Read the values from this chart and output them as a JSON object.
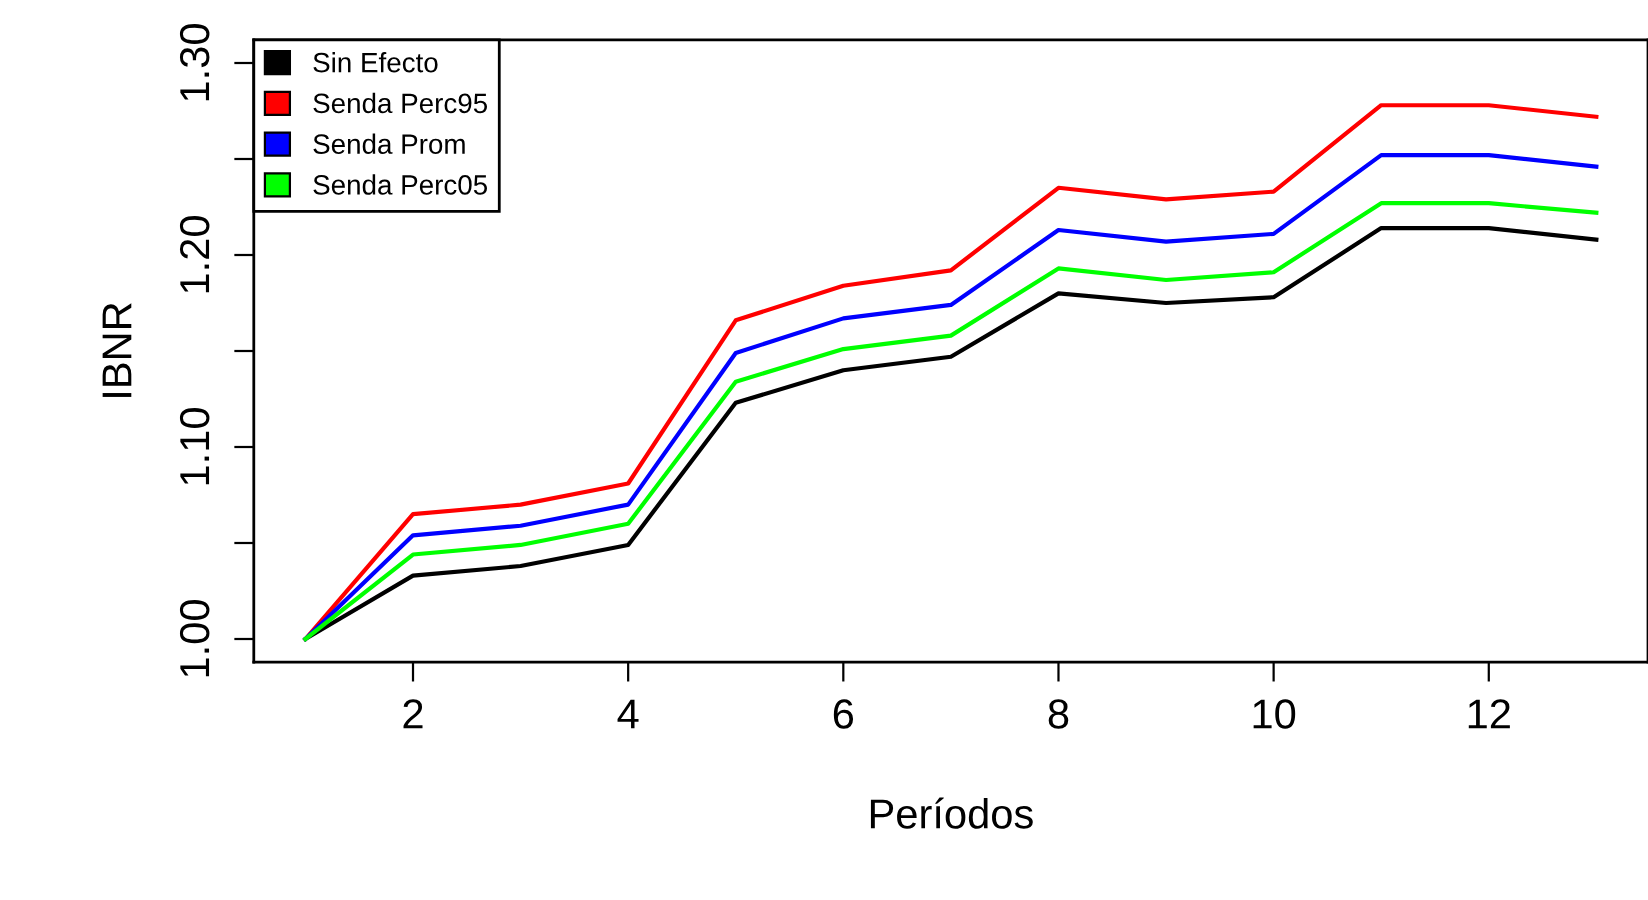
{
  "chart_data": {
    "type": "line",
    "xlabel": "Períodos",
    "ylabel": "IBNR",
    "x": [
      1,
      2,
      3,
      4,
      5,
      6,
      7,
      8,
      9,
      10,
      11,
      12,
      13
    ],
    "series": [
      {
        "name": "Sin Efecto",
        "color": "#000000",
        "values": [
          1.0,
          1.033,
          1.038,
          1.049,
          1.123,
          1.14,
          1.147,
          1.18,
          1.175,
          1.178,
          1.214,
          1.214,
          1.208
        ]
      },
      {
        "name": "Senda Perc95",
        "color": "#ff0000",
        "values": [
          1.0,
          1.065,
          1.07,
          1.081,
          1.166,
          1.184,
          1.192,
          1.235,
          1.229,
          1.233,
          1.278,
          1.278,
          1.272
        ]
      },
      {
        "name": "Senda Prom",
        "color": "#0000ff",
        "values": [
          1.0,
          1.054,
          1.059,
          1.07,
          1.149,
          1.167,
          1.174,
          1.213,
          1.207,
          1.211,
          1.252,
          1.252,
          1.246
        ]
      },
      {
        "name": "Senda Perc05",
        "color": "#00ff00",
        "values": [
          1.0,
          1.044,
          1.049,
          1.06,
          1.134,
          1.151,
          1.158,
          1.193,
          1.187,
          1.191,
          1.227,
          1.227,
          1.222
        ]
      }
    ],
    "xlim": [
      0.52,
      13.48
    ],
    "ylim": [
      0.988,
      1.312
    ],
    "xticks": [
      2,
      4,
      6,
      8,
      10,
      12
    ],
    "yticks": [
      {
        "value": 1.0,
        "label": "1.00"
      },
      {
        "value": 1.05,
        "label": null
      },
      {
        "value": 1.1,
        "label": "1.10"
      },
      {
        "value": 1.15,
        "label": null
      },
      {
        "value": 1.2,
        "label": "1.20"
      },
      {
        "value": 1.25,
        "label": null
      },
      {
        "value": 1.3,
        "label": "1.30"
      }
    ],
    "legend": "top left",
    "grid": false,
    "marker": "none",
    "line_style": "solid"
  }
}
